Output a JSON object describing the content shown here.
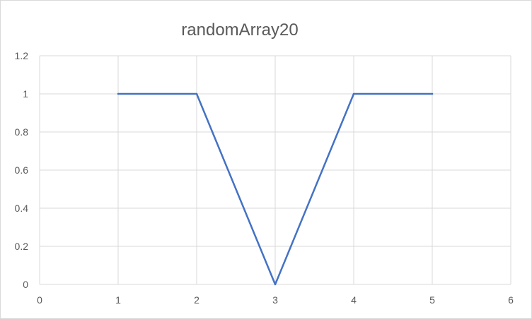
{
  "chart_data": {
    "type": "scatter",
    "title": "randomArray20",
    "xlabel": "",
    "ylabel": "",
    "xlim": [
      0,
      6
    ],
    "ylim": [
      0,
      1.2
    ],
    "x_ticks": [
      "0",
      "1",
      "2",
      "3",
      "4",
      "5",
      "6"
    ],
    "y_ticks": [
      "0",
      "0.2",
      "0.4",
      "0.6",
      "0.8",
      "1",
      "1.2"
    ],
    "grid": "both",
    "legend": "none",
    "series": [
      {
        "x": [
          1,
          2,
          3,
          4,
          5
        ],
        "y": [
          1,
          1,
          0,
          1,
          1
        ],
        "color": "#4472C4",
        "style": "line, no markers"
      }
    ]
  }
}
